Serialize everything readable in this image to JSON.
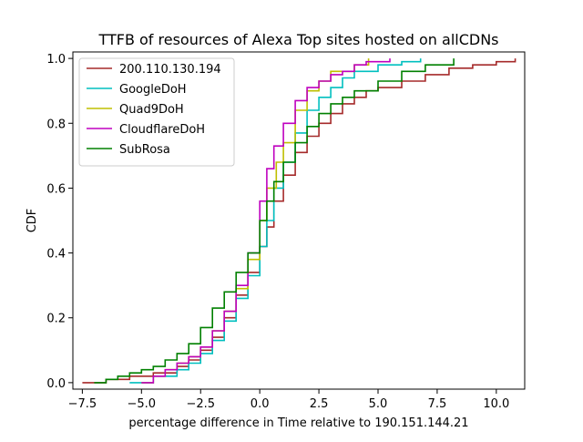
{
  "chart_data": {
    "type": "line",
    "title": "TTFB of resources of Alexa Top sites hosted on allCDNs",
    "xlabel": "percentage difference in Time relative to 190.151.144.21",
    "ylabel": "CDF",
    "xlim": [
      -7.9,
      11.2
    ],
    "ylim": [
      -0.02,
      1.02
    ],
    "x_ticks": [
      -7.5,
      -5.0,
      -2.5,
      0.0,
      2.5,
      5.0,
      7.5,
      10.0
    ],
    "x_tick_labels": [
      "−7.5",
      "−5.0",
      "−2.5",
      "0.0",
      "2.5",
      "5.0",
      "7.5",
      "10.0"
    ],
    "y_ticks": [
      0.0,
      0.2,
      0.4,
      0.6,
      0.8,
      1.0
    ],
    "y_tick_labels": [
      "0.0",
      "0.2",
      "0.4",
      "0.6",
      "0.8",
      "1.0"
    ],
    "grid": false,
    "legend_position": "top-left",
    "series": [
      {
        "name": "200.110.130.194",
        "color": "#a52a2a",
        "points": [
          [
            -7.5,
            0.0
          ],
          [
            -6.5,
            0.01
          ],
          [
            -5.5,
            0.02
          ],
          [
            -4.5,
            0.03
          ],
          [
            -3.5,
            0.05
          ],
          [
            -3.0,
            0.07
          ],
          [
            -2.5,
            0.1
          ],
          [
            -2.0,
            0.14
          ],
          [
            -1.5,
            0.2
          ],
          [
            -1.0,
            0.27
          ],
          [
            -0.5,
            0.34
          ],
          [
            0.0,
            0.42
          ],
          [
            0.3,
            0.48
          ],
          [
            0.6,
            0.56
          ],
          [
            1.0,
            0.64
          ],
          [
            1.5,
            0.71
          ],
          [
            2.0,
            0.76
          ],
          [
            2.5,
            0.8
          ],
          [
            3.0,
            0.83
          ],
          [
            3.5,
            0.86
          ],
          [
            4.0,
            0.88
          ],
          [
            4.5,
            0.9
          ],
          [
            5.0,
            0.91
          ],
          [
            6.0,
            0.93
          ],
          [
            7.0,
            0.95
          ],
          [
            8.0,
            0.97
          ],
          [
            9.0,
            0.98
          ],
          [
            10.0,
            0.99
          ],
          [
            10.8,
            1.0
          ]
        ]
      },
      {
        "name": "GoogleDoH",
        "color": "#00bfbf",
        "points": [
          [
            -5.5,
            0.0
          ],
          [
            -4.5,
            0.02
          ],
          [
            -3.5,
            0.04
          ],
          [
            -3.0,
            0.06
          ],
          [
            -2.5,
            0.09
          ],
          [
            -2.0,
            0.13
          ],
          [
            -1.5,
            0.19
          ],
          [
            -1.0,
            0.26
          ],
          [
            -0.5,
            0.33
          ],
          [
            0.0,
            0.42
          ],
          [
            0.3,
            0.5
          ],
          [
            0.6,
            0.6
          ],
          [
            1.0,
            0.68
          ],
          [
            1.5,
            0.77
          ],
          [
            2.0,
            0.84
          ],
          [
            2.5,
            0.88
          ],
          [
            3.0,
            0.91
          ],
          [
            3.5,
            0.94
          ],
          [
            4.0,
            0.96
          ],
          [
            5.0,
            0.98
          ],
          [
            6.0,
            0.99
          ],
          [
            6.8,
            1.0
          ]
        ]
      },
      {
        "name": "Quad9DoH",
        "color": "#bfbf00",
        "points": [
          [
            -5.0,
            0.0
          ],
          [
            -4.5,
            0.02
          ],
          [
            -4.0,
            0.04
          ],
          [
            -3.5,
            0.06
          ],
          [
            -3.0,
            0.08
          ],
          [
            -2.5,
            0.11
          ],
          [
            -2.0,
            0.16
          ],
          [
            -1.5,
            0.22
          ],
          [
            -1.0,
            0.29
          ],
          [
            -0.5,
            0.38
          ],
          [
            0.0,
            0.5
          ],
          [
            0.3,
            0.6
          ],
          [
            0.7,
            0.68
          ],
          [
            1.0,
            0.74
          ],
          [
            1.5,
            0.84
          ],
          [
            2.0,
            0.9
          ],
          [
            2.5,
            0.93
          ],
          [
            3.0,
            0.96
          ],
          [
            4.0,
            0.98
          ],
          [
            4.6,
            1.0
          ]
        ]
      },
      {
        "name": "CloudflareDoH",
        "color": "#bf00bf",
        "points": [
          [
            -5.0,
            0.0
          ],
          [
            -4.5,
            0.02
          ],
          [
            -4.0,
            0.04
          ],
          [
            -3.5,
            0.06
          ],
          [
            -3.0,
            0.08
          ],
          [
            -2.5,
            0.11
          ],
          [
            -2.0,
            0.16
          ],
          [
            -1.5,
            0.22
          ],
          [
            -1.0,
            0.3
          ],
          [
            -0.5,
            0.4
          ],
          [
            0.0,
            0.56
          ],
          [
            0.3,
            0.66
          ],
          [
            0.6,
            0.73
          ],
          [
            1.0,
            0.8
          ],
          [
            1.5,
            0.87
          ],
          [
            2.0,
            0.91
          ],
          [
            2.5,
            0.93
          ],
          [
            3.0,
            0.95
          ],
          [
            3.5,
            0.96
          ],
          [
            4.0,
            0.98
          ],
          [
            4.5,
            0.99
          ],
          [
            5.5,
            1.0
          ]
        ]
      },
      {
        "name": "SubRosa",
        "color": "#008000",
        "points": [
          [
            -7.0,
            0.0
          ],
          [
            -6.5,
            0.01
          ],
          [
            -6.0,
            0.02
          ],
          [
            -5.5,
            0.03
          ],
          [
            -5.0,
            0.04
          ],
          [
            -4.5,
            0.05
          ],
          [
            -4.0,
            0.07
          ],
          [
            -3.5,
            0.09
          ],
          [
            -3.0,
            0.12
          ],
          [
            -2.5,
            0.17
          ],
          [
            -2.0,
            0.23
          ],
          [
            -1.5,
            0.28
          ],
          [
            -1.0,
            0.34
          ],
          [
            -0.5,
            0.4
          ],
          [
            0.0,
            0.5
          ],
          [
            0.3,
            0.56
          ],
          [
            0.6,
            0.62
          ],
          [
            1.0,
            0.68
          ],
          [
            1.5,
            0.74
          ],
          [
            2.0,
            0.79
          ],
          [
            2.5,
            0.83
          ],
          [
            3.0,
            0.86
          ],
          [
            3.5,
            0.88
          ],
          [
            4.0,
            0.9
          ],
          [
            5.0,
            0.93
          ],
          [
            6.0,
            0.96
          ],
          [
            7.0,
            0.98
          ],
          [
            8.2,
            1.0
          ]
        ]
      }
    ]
  }
}
